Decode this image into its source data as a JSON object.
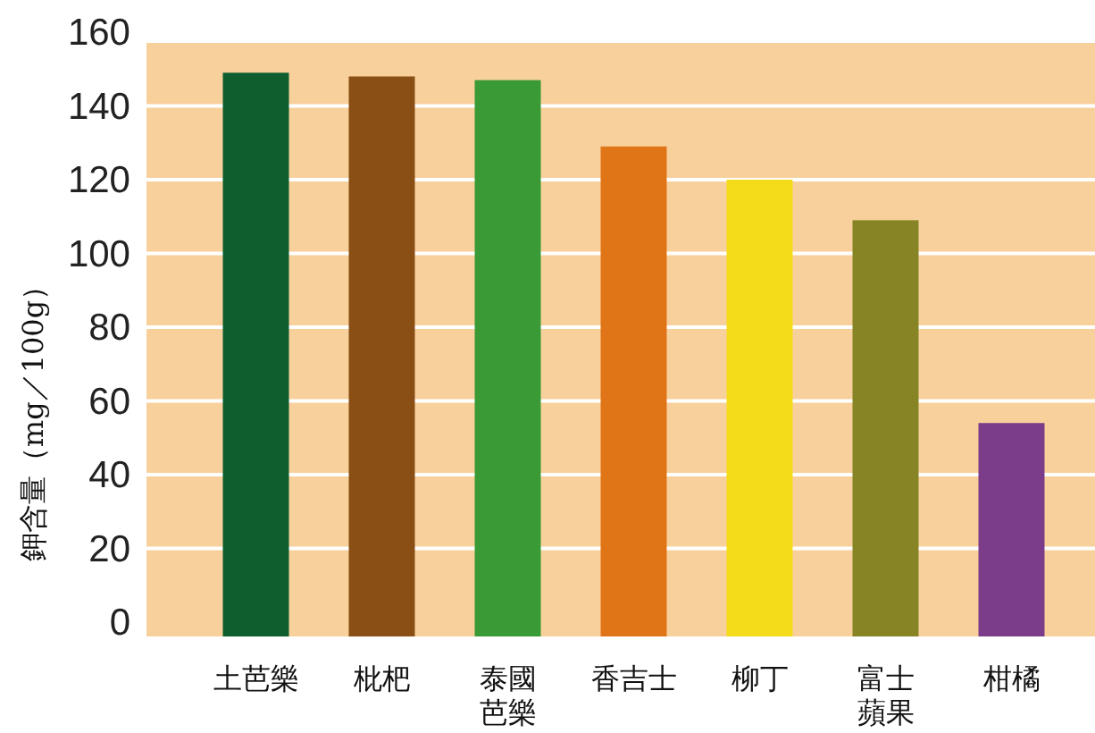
{
  "chart_data": {
    "type": "bar",
    "ylabel": "鉀含量（mg／100g）",
    "categories": [
      "土芭樂",
      "枇杷",
      "泰國芭樂",
      "香吉士",
      "柳丁",
      "富士蘋果",
      "柑橘"
    ],
    "values": [
      149,
      148,
      147,
      129,
      120,
      109,
      54
    ],
    "colors": [
      "#0e5e2e",
      "#8a4f14",
      "#3a9a35",
      "#e07518",
      "#f5dc1a",
      "#868425",
      "#7b3d8a"
    ],
    "ylim": [
      0,
      160
    ],
    "yticks": [
      0,
      20,
      40,
      60,
      80,
      100,
      120,
      140,
      160
    ],
    "grid": "y"
  }
}
